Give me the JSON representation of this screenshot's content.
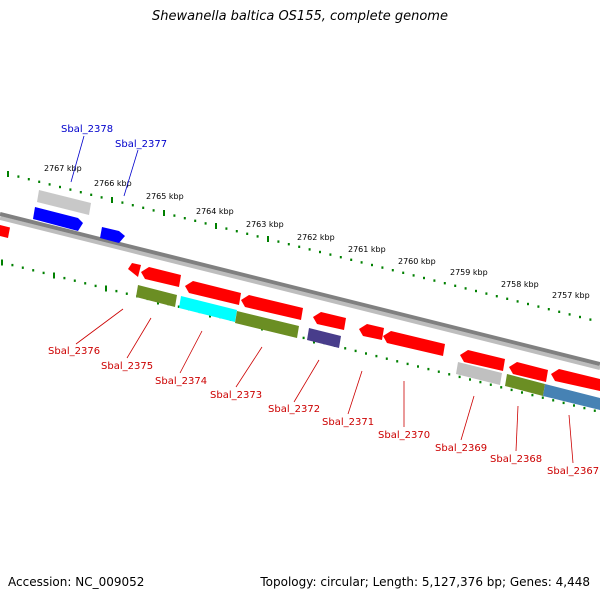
{
  "map": {
    "title": "Shewanella baltica OS155, complete genome",
    "accession": "Accession: NC_009052",
    "stats": "Topology: circular; Length: 5,127,376 bp; Genes: 4,448",
    "colors": {
      "backbone": "#808080",
      "tick": "#008000",
      "forward_label": "#0000cc",
      "reverse_label": "#cc0000",
      "red": "#ff0000",
      "blue": "#0000ff",
      "gray": "#c0c0c0",
      "olive": "#6b8e23",
      "cyan": "#00ffff",
      "slate": "#483d8b",
      "steel": "#4682b4"
    },
    "scale_labels": [
      {
        "text": "2767 kbp",
        "offset": 60
      },
      {
        "text": "2766 kbp",
        "offset": 112
      },
      {
        "text": "2765 kbp",
        "offset": 164
      },
      {
        "text": "2764 kbp",
        "offset": 216
      },
      {
        "text": "2763 kbp",
        "offset": 268
      },
      {
        "text": "2762 kbp",
        "offset": 320
      },
      {
        "text": "2761 kbp",
        "offset": 372
      },
      {
        "text": "2760 kbp",
        "offset": 424
      },
      {
        "text": "2759 kbp",
        "offset": 476
      },
      {
        "text": "2758 kbp",
        "offset": 528
      },
      {
        "text": "2757 kbp",
        "offset": 580
      }
    ],
    "forward_genes": [
      {
        "label": "Sbal_2378",
        "color": "#0000ff"
      },
      {
        "label": "Sbal_2377",
        "color": "#0000ff"
      }
    ],
    "reverse_gene_labels": [
      "Sbal_2376",
      "Sbal_2375",
      "Sbal_2374",
      "Sbal_2373",
      "Sbal_2372",
      "Sbal_2371",
      "Sbal_2370",
      "Sbal_2369",
      "Sbal_2368",
      "Sbal_2367"
    ]
  }
}
